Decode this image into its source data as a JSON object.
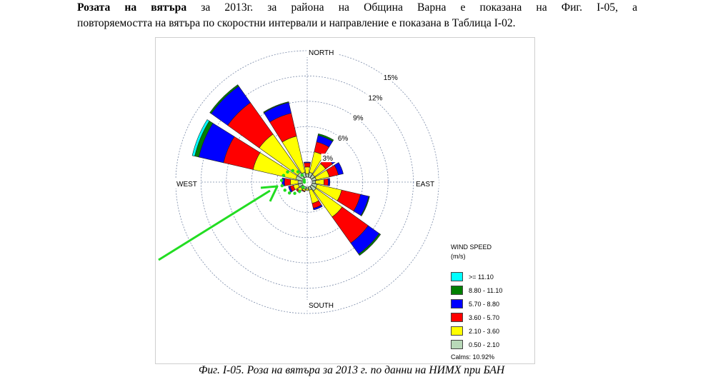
{
  "paragraph": {
    "bold_lead": "Розата на вятъра",
    "line1_rest": " за 2013г. за района на Община Варна е показана на Фиг. І-05, а",
    "line2": "повторяемостта на вятъра по скоростни интервали и направление е показана в Таблица І-02."
  },
  "caption": "Фиг. І-05. Роза на вятъра за 2013 г. по данни на НИМХ при БАН",
  "chart_data": {
    "type": "windrose",
    "directions": [
      "N",
      "NNE",
      "NE",
      "ENE",
      "E",
      "ESE",
      "SE",
      "SSE",
      "S",
      "SSW",
      "SW",
      "WSW",
      "W",
      "WNW",
      "NW",
      "NNW"
    ],
    "compass_labels": {
      "north": "NORTH",
      "south": "SOUTH",
      "east": "EAST",
      "west": "WEST"
    },
    "ring_labels": [
      "3%",
      "6%",
      "9%",
      "12%",
      "15%"
    ],
    "ring_values": [
      3,
      6,
      9,
      12,
      15
    ],
    "speed_bins": [
      "0.50 - 2.10",
      "2.10 - 3.60",
      "3.60 - 5.70",
      "5.70 - 8.80",
      "8.80 - 11.10",
      ">= 11.10"
    ],
    "bin_colors": [
      "#b8d8b8",
      "#ffff00",
      "#ff0000",
      "#0000ff",
      "#008000",
      "#00ffff"
    ],
    "sector_values": [
      [
        0.4,
        0.8,
        0.5,
        0.1,
        0.0,
        0.0
      ],
      [
        0.6,
        2.5,
        1.2,
        0.8,
        0.2,
        0.0
      ],
      [
        0.5,
        1.6,
        1.0,
        0.5,
        0.0,
        0.0
      ],
      [
        0.5,
        1.6,
        1.1,
        0.6,
        0.0,
        0.0
      ],
      [
        0.4,
        1.0,
        0.5,
        0.2,
        0.0,
        0.0
      ],
      [
        0.6,
        3.0,
        2.3,
        1.0,
        0.1,
        0.0
      ],
      [
        0.7,
        3.8,
        3.8,
        1.6,
        0.2,
        0.0
      ],
      [
        0.4,
        1.6,
        0.6,
        0.2,
        0.0,
        0.0
      ],
      [
        0.2,
        0.2,
        0.0,
        0.0,
        0.0,
        0.0
      ],
      [
        0.3,
        0.2,
        0.1,
        0.0,
        0.0,
        0.0
      ],
      [
        0.4,
        0.4,
        0.2,
        0.0,
        0.0,
        0.0
      ],
      [
        0.5,
        0.6,
        0.4,
        0.2,
        0.0,
        0.0
      ],
      [
        0.5,
        0.9,
        0.7,
        0.3,
        0.0,
        0.0
      ],
      [
        0.8,
        5.2,
        3.6,
        3.0,
        0.5,
        0.3
      ],
      [
        0.8,
        5.6,
        4.6,
        2.4,
        0.2,
        0.0
      ],
      [
        0.6,
        4.4,
        2.8,
        1.3,
        0.1,
        0.0
      ]
    ],
    "legend": {
      "title_line1": "WIND SPEED",
      "title_line2": "(m/s)",
      "items": [
        ">= 11.10",
        "8.80 - 11.10",
        "5.70 - 8.80",
        "3.60 - 5.70",
        "2.10 - 3.60",
        "0.50 - 2.10"
      ],
      "calms": "Calms: 10.92%"
    },
    "annotation_color": "#22dd22"
  }
}
